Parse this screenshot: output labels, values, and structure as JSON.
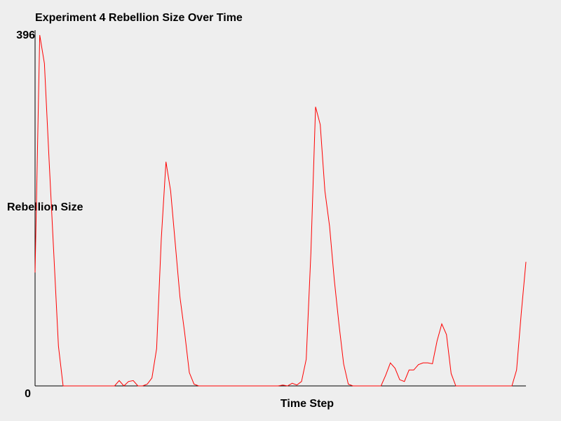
{
  "colors": {
    "background": "#eeeeee",
    "series": "#ff0000",
    "axis": "#000000"
  },
  "chart_data": {
    "type": "line",
    "title": "Experiment 4 Rebellion Size Over Time",
    "xlabel": "Time Step",
    "ylabel": "Rebellion Size",
    "ylim": [
      0,
      396
    ],
    "y_tick_labels": [
      "0",
      "396"
    ],
    "grid": false,
    "legend": "none",
    "series": [
      {
        "values": [
          128,
          396,
          364,
          255,
          150,
          45,
          0,
          0,
          0,
          0,
          0,
          0,
          0,
          0,
          0,
          0,
          0,
          0,
          6,
          0,
          5,
          6,
          0,
          0,
          2,
          9,
          42,
          166,
          253,
          220,
          160,
          100,
          60,
          15,
          2,
          0,
          0,
          0,
          0,
          0,
          0,
          0,
          0,
          0,
          0,
          0,
          0,
          0,
          0,
          0,
          0,
          0,
          0,
          1,
          0,
          3,
          1,
          5,
          30,
          150,
          315,
          295,
          220,
          180,
          120,
          70,
          25,
          2,
          0,
          0,
          0,
          0,
          0,
          0,
          0,
          12,
          26,
          20,
          7,
          5,
          18,
          18,
          24,
          26,
          26,
          25,
          51,
          70,
          58,
          14,
          0,
          0,
          0,
          0,
          0,
          0,
          0,
          0,
          0,
          0,
          0,
          0,
          0,
          18,
          82,
          140
        ]
      }
    ]
  }
}
